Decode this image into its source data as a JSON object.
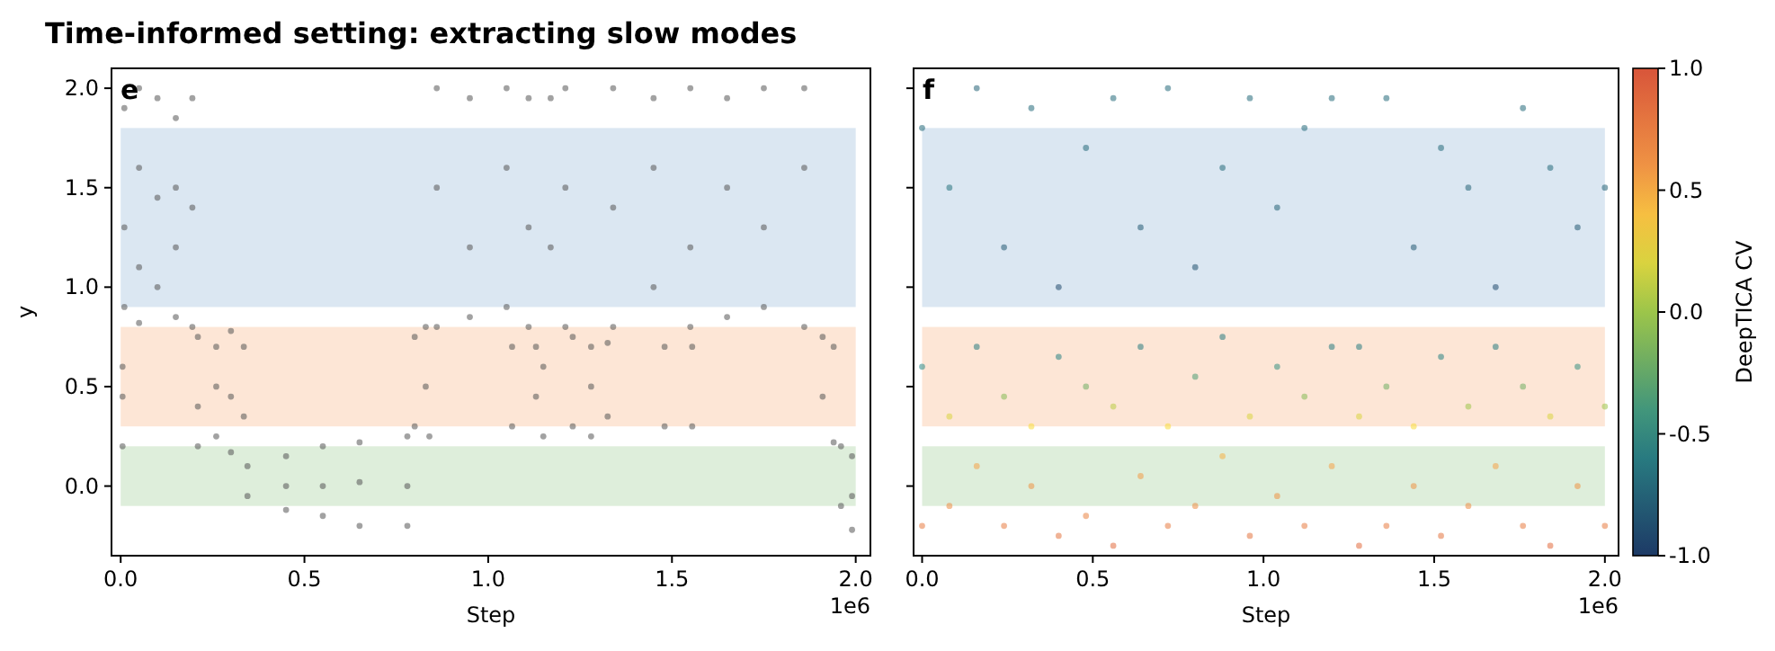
{
  "chart_data": [
    {
      "type": "scatter",
      "title": "Time-informed setting: extracting slow modes",
      "xlabel": "Step",
      "ylabel": "y",
      "annotations": [
        "e",
        "1e6"
      ],
      "marker": "circle",
      "xlim": [
        -0.025,
        2.04
      ],
      "ylim": [
        -0.35,
        2.1
      ],
      "xticks": [
        {
          "value": 0,
          "label": "0.0"
        },
        {
          "value": 0.5,
          "label": "0.5"
        },
        {
          "value": 1,
          "label": "1.0"
        },
        {
          "value": 1.5,
          "label": "1.5"
        },
        {
          "value": 2,
          "label": "2.0"
        }
      ],
      "yticks": [
        {
          "value": 0,
          "label": "0.0"
        },
        {
          "value": 0.5,
          "label": "0.5"
        },
        {
          "value": 1,
          "label": "1.0"
        },
        {
          "value": 1.5,
          "label": "1.5"
        },
        {
          "value": 2,
          "label": "2.0"
        }
      ],
      "bands": [
        {
          "axis": "y",
          "from": 0.9,
          "to": 1.8,
          "color": "#dbe7f2"
        },
        {
          "axis": "y",
          "from": 0.3,
          "to": 0.8,
          "color": "#fde6d6"
        },
        {
          "axis": "y",
          "from": -0.1,
          "to": 0.2,
          "color": "#deeedb"
        }
      ],
      "series": [
        {
          "color": "#555555",
          "x": [
            0.01,
            0.01,
            0.01,
            0.05,
            0.05,
            0.05,
            0.05,
            0.1,
            0.1,
            0.1,
            0.15,
            0.15,
            0.15,
            0.15,
            0.195,
            0.195,
            0.195,
            0.005,
            0.005,
            0.005,
            0.21,
            0.21,
            0.21,
            0.26,
            0.26,
            0.26,
            0.3,
            0.3,
            0.3,
            0.335,
            0.335,
            0.345,
            0.345,
            0.45,
            0.45,
            0.45,
            0.55,
            0.55,
            0.55,
            0.65,
            0.65,
            0.65,
            0.78,
            0.78,
            0.78,
            0.8,
            0.8,
            0.83,
            0.83,
            0.84,
            0.86,
            0.86,
            0.86,
            0.95,
            0.95,
            0.95,
            1.05,
            1.05,
            1.05,
            1.11,
            1.11,
            1.11,
            1.065,
            1.065,
            1.13,
            1.13,
            1.15,
            1.15,
            1.17,
            1.17,
            1.21,
            1.21,
            1.21,
            1.23,
            1.23,
            1.28,
            1.28,
            1.28,
            1.325,
            1.325,
            1.34,
            1.34,
            1.34,
            1.45,
            1.45,
            1.45,
            1.55,
            1.55,
            1.55,
            1.65,
            1.65,
            1.65,
            1.75,
            1.75,
            1.75,
            1.86,
            1.86,
            1.86,
            1.48,
            1.48,
            1.555,
            1.555,
            1.91,
            1.91,
            1.94,
            1.94,
            1.96,
            1.96,
            1.99,
            1.99,
            1.99
          ],
          "values": [
            1.9,
            1.3,
            0.9,
            2.0,
            1.6,
            1.1,
            0.82,
            1.95,
            1.45,
            1.0,
            1.85,
            1.5,
            1.2,
            0.85,
            1.95,
            1.4,
            0.8,
            0.6,
            0.45,
            0.2,
            0.75,
            0.4,
            0.2,
            0.7,
            0.5,
            0.25,
            0.78,
            0.45,
            0.17,
            0.7,
            0.35,
            0.1,
            -0.05,
            0.15,
            0.0,
            -0.12,
            0.2,
            0.0,
            -0.15,
            0.22,
            0.02,
            -0.2,
            0.25,
            0.0,
            -0.2,
            0.75,
            0.3,
            0.8,
            0.5,
            0.25,
            2.0,
            1.5,
            0.8,
            1.95,
            1.2,
            0.85,
            2.0,
            1.6,
            0.9,
            1.95,
            1.3,
            0.8,
            0.7,
            0.3,
            0.7,
            0.45,
            0.6,
            0.25,
            1.95,
            1.2,
            2.0,
            1.5,
            0.8,
            0.75,
            0.3,
            0.7,
            0.5,
            0.25,
            0.72,
            0.35,
            2.0,
            1.4,
            0.8,
            1.95,
            1.6,
            1.0,
            2.0,
            1.2,
            0.8,
            1.95,
            1.5,
            0.85,
            2.0,
            1.3,
            0.9,
            2.0,
            1.6,
            0.8,
            0.7,
            0.3,
            0.7,
            0.3,
            0.75,
            0.45,
            0.7,
            0.22,
            0.2,
            -0.1,
            0.15,
            -0.05,
            -0.22
          ]
        }
      ]
    },
    {
      "type": "scatter",
      "xlabel": "Step",
      "annotations": [
        "f",
        "1e6"
      ],
      "marker": "circle",
      "tick_labels": "x",
      "clabel": "DeepTICA CV",
      "clim": [
        -1,
        1
      ],
      "cticks": [
        {
          "value": -1,
          "label": "-1.0"
        },
        {
          "value": -0.5,
          "label": "-0.5"
        },
        {
          "value": 0,
          "label": "0.0"
        },
        {
          "value": 0.5,
          "label": "0.5"
        },
        {
          "value": 1,
          "label": "1.0"
        }
      ],
      "xlim": [
        -0.025,
        2.04
      ],
      "ylim": [
        -0.35,
        2.1
      ],
      "xticks": [
        {
          "value": 0,
          "label": "0.0"
        },
        {
          "value": 0.5,
          "label": "0.5"
        },
        {
          "value": 1,
          "label": "1.0"
        },
        {
          "value": 1.5,
          "label": "1.5"
        },
        {
          "value": 2,
          "label": "2.0"
        }
      ],
      "yticks": [
        {
          "value": 0,
          "label": null
        },
        {
          "value": 0.5,
          "label": null
        },
        {
          "value": 1,
          "label": null
        },
        {
          "value": 1.5,
          "label": null
        },
        {
          "value": 2,
          "label": null
        }
      ],
      "bands": [
        {
          "axis": "y",
          "from": 0.9,
          "to": 1.8,
          "color": "#dbe7f2"
        },
        {
          "axis": "y",
          "from": 0.3,
          "to": 0.8,
          "color": "#fde6d6"
        },
        {
          "axis": "y",
          "from": -0.1,
          "to": 0.2,
          "color": "#deeedb"
        }
      ],
      "series": [
        {
          "x": [
            0,
            0,
            0,
            0.08,
            0.08,
            0.08,
            0.16,
            0.16,
            0.16,
            0.24,
            0.24,
            0.24,
            0.32,
            0.32,
            0.32,
            0.4,
            0.4,
            0.4,
            0.48,
            0.48,
            0.48,
            0.56,
            0.56,
            0.56,
            0.64,
            0.64,
            0.64,
            0.72,
            0.72,
            0.72,
            0.8,
            0.8,
            0.8,
            0.88,
            0.88,
            0.88,
            0.96,
            0.96,
            0.96,
            1.04,
            1.04,
            1.04,
            1.12,
            1.12,
            1.12,
            1.2,
            1.2,
            1.2,
            1.28,
            1.28,
            1.28,
            1.36,
            1.36,
            1.36,
            1.44,
            1.44,
            1.44,
            1.52,
            1.52,
            1.52,
            1.6,
            1.6,
            1.6,
            1.68,
            1.68,
            1.68,
            1.76,
            1.76,
            1.76,
            1.84,
            1.84,
            1.84,
            1.92,
            1.92,
            1.92,
            2,
            2,
            2
          ],
          "values": [
            1.8,
            0.6,
            -0.2,
            1.5,
            0.35,
            -0.1,
            2.0,
            0.7,
            0.1,
            1.2,
            0.45,
            -0.2,
            1.9,
            0.3,
            0.0,
            1.0,
            0.65,
            -0.25,
            1.7,
            0.5,
            -0.15,
            1.95,
            0.4,
            -0.3,
            1.3,
            0.7,
            0.05,
            2.0,
            0.3,
            -0.2,
            1.1,
            0.55,
            -0.1,
            1.6,
            0.75,
            0.15,
            1.95,
            0.35,
            -0.25,
            1.4,
            0.6,
            -0.05,
            1.8,
            0.45,
            -0.2,
            1.95,
            0.7,
            0.1,
            0.7,
            0.35,
            -0.3,
            1.95,
            0.5,
            -0.2,
            1.2,
            0.3,
            0.0,
            1.7,
            0.65,
            -0.25,
            1.5,
            0.4,
            -0.1,
            1.0,
            0.7,
            0.1,
            1.9,
            0.5,
            -0.2,
            1.6,
            0.35,
            -0.3,
            1.3,
            0.6,
            0.0,
            1.5,
            0.4,
            -0.2
          ],
          "cvalues": [
            -0.7,
            -0.5,
            0.75,
            -0.65,
            0.2,
            0.65,
            -0.75,
            -0.6,
            0.5,
            -0.8,
            -0.1,
            0.75,
            -0.7,
            0.3,
            0.6,
            -0.9,
            -0.55,
            0.8,
            -0.7,
            -0.2,
            0.7,
            -0.7,
            0.1,
            0.85,
            -0.8,
            -0.6,
            0.55,
            -0.7,
            0.3,
            0.75,
            -0.85,
            -0.35,
            0.65,
            -0.7,
            -0.6,
            0.45,
            -0.7,
            0.2,
            0.8,
            -0.75,
            -0.45,
            0.6,
            -0.7,
            -0.1,
            0.75,
            -0.7,
            -0.6,
            0.5,
            -0.6,
            0.2,
            0.85,
            -0.7,
            -0.2,
            0.75,
            -0.8,
            0.3,
            0.6,
            -0.7,
            -0.55,
            0.8,
            -0.75,
            0.0,
            0.65,
            -0.9,
            -0.6,
            0.5,
            -0.7,
            -0.2,
            0.75,
            -0.7,
            0.2,
            0.85,
            -0.8,
            -0.45,
            0.6,
            -0.75,
            0.0,
            0.75
          ]
        }
      ]
    }
  ]
}
